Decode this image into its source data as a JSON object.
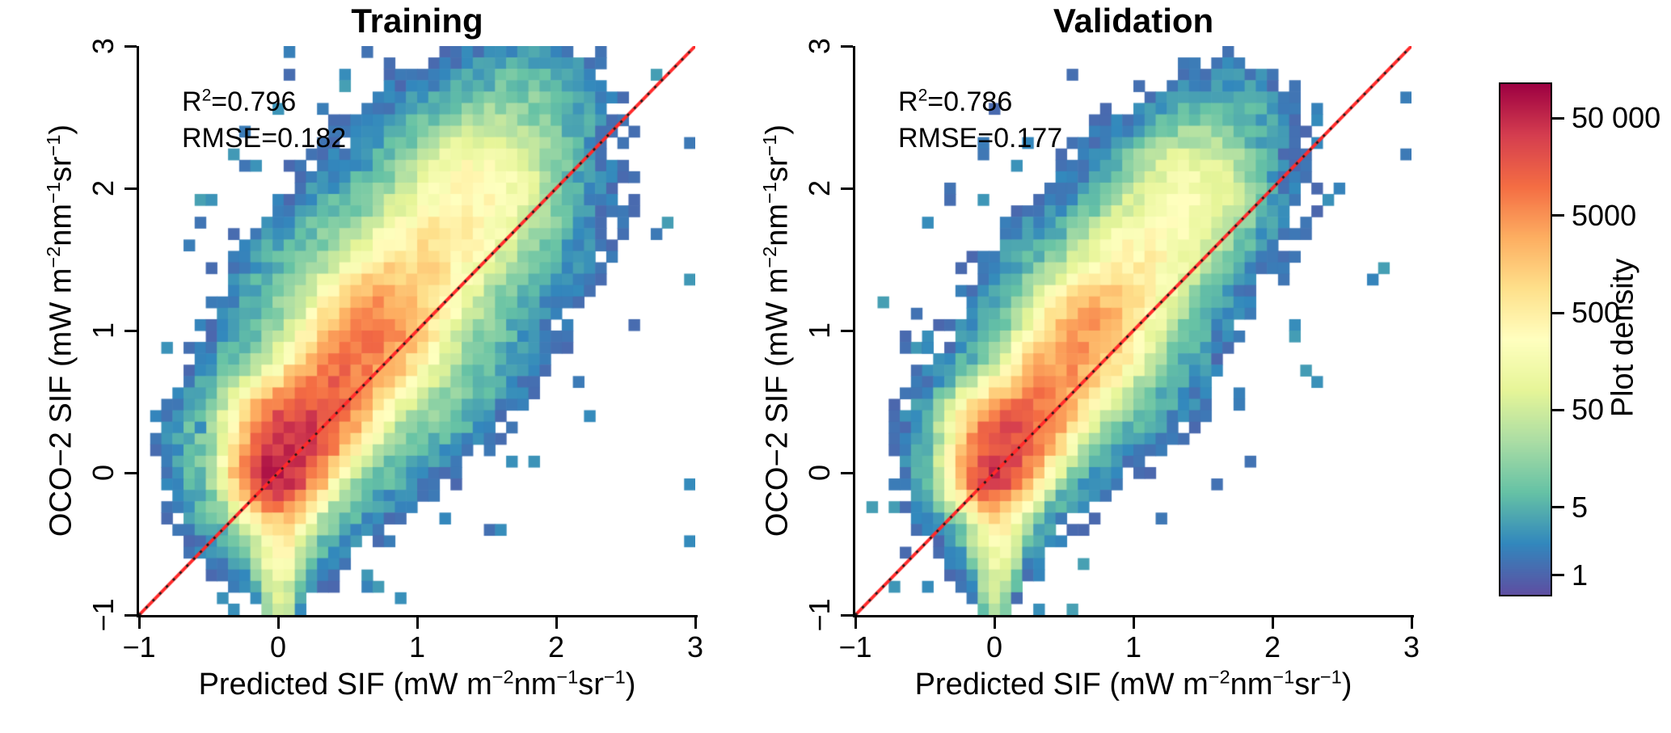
{
  "chart_data": {
    "type": "heatmap",
    "description": "Two 2D-histogram density scatter plots (Training and Validation) of predicted SIF versus OCO-2 observed SIF with a red 1:1 line and a log-scaled Spectral color bar of bin counts.",
    "colormap": [
      "#5e4fa2",
      "#3288bd",
      "#66c2a5",
      "#abdda4",
      "#e6f598",
      "#ffffbf",
      "#fee08b",
      "#fdae61",
      "#f46d43",
      "#d53e4f",
      "#9e0142"
    ],
    "log_color_range": [
      -0.2,
      5.05
    ],
    "identity_line": {
      "color": "#ff2a2a",
      "dot_color": "#1a1a1a"
    },
    "colorbar": {
      "label": "Plot density",
      "tick_labels": [
        "1",
        "5",
        "50",
        "500",
        "5000",
        "50 000"
      ],
      "tick_values": [
        1,
        5,
        50,
        500,
        5000,
        50000
      ]
    },
    "panels": [
      {
        "title": "Training",
        "r2": 0.796,
        "rmse": 0.182,
        "r2_parts": [
          {
            "t": "R"
          },
          {
            "sup": "2"
          },
          {
            "t": "=0.796"
          }
        ],
        "rmse_label": "RMSE=0.182",
        "xlabel_parts": [
          {
            "t": "Predicted SIF (mW m"
          },
          {
            "sup": "−2"
          },
          {
            "t": "nm"
          },
          {
            "sup": "−1"
          },
          {
            "t": "sr"
          },
          {
            "sup": "−1"
          },
          {
            "t": ")"
          }
        ],
        "ylabel_parts": [
          {
            "t": "OCO−2 SIF (mW m"
          },
          {
            "sup": "−2"
          },
          {
            "t": "nm"
          },
          {
            "sup": "−1"
          },
          {
            "t": "sr"
          },
          {
            "sup": "−1"
          },
          {
            "t": ")"
          }
        ],
        "xlim": [
          -1,
          3
        ],
        "ylim": [
          -1,
          3
        ],
        "xticks": [
          "−1",
          "0",
          "1",
          "2",
          "3"
        ],
        "yticks": [
          "−1",
          "0",
          "1",
          "2",
          "3"
        ],
        "model": {
          "seed": 12,
          "bins": 50,
          "noise": 0.5,
          "speckle": 0.06,
          "ridges": [
            {
              "p0": [
                0.0,
                0.02
              ],
              "p1": [
                0.7,
                1.0
              ],
              "logA0": 4.82,
              "logA1": 3.6,
              "sigma0": 0.115,
              "sigma1": 0.165
            },
            {
              "p0": [
                0.7,
                1.0
              ],
              "p1": [
                1.45,
                2.0
              ],
              "logA0": 3.6,
              "logA1": 2.3,
              "sigma0": 0.165,
              "sigma1": 0.2
            },
            {
              "p0": [
                1.45,
                2.0
              ],
              "p1": [
                1.8,
                2.55
              ],
              "logA0": 2.3,
              "logA1": 0.9,
              "sigma0": 0.2,
              "sigma1": 0.24
            },
            {
              "p0": [
                0.01,
                -1.0
              ],
              "p1": [
                0.03,
                0.3
              ],
              "logA0": 1.6,
              "logA1": 4.2,
              "sigma0": 0.05,
              "sigma1": 0.13
            },
            {
              "p0": [
                0.0,
                0.0
              ],
              "p1": [
                0.7,
                1.0
              ],
              "logA0": 1.35,
              "logA1": 1.4,
              "sigma0": 0.33,
              "sigma1": 0.42
            },
            {
              "p0": [
                0.7,
                1.0
              ],
              "p1": [
                1.5,
                2.05
              ],
              "logA0": 1.4,
              "logA1": 0.7,
              "sigma0": 0.42,
              "sigma1": 0.5
            },
            {
              "p0": [
                1.5,
                2.05
              ],
              "p1": [
                1.78,
                2.5
              ],
              "logA0": 0.7,
              "logA1": 0.0,
              "sigma0": 0.5,
              "sigma1": 0.5
            },
            {
              "p0": [
                0.0,
                -1.0
              ],
              "p1": [
                0.02,
                0.2
              ],
              "logA0": 0.4,
              "logA1": 1.6,
              "sigma0": 0.12,
              "sigma1": 0.3
            }
          ],
          "outliers": [
            [
              2.94,
              -0.06
            ],
            [
              2.94,
              -0.46
            ],
            [
              -0.58,
              0.34
            ]
          ]
        }
      },
      {
        "title": "Validation",
        "r2": 0.786,
        "rmse": 0.177,
        "r2_parts": [
          {
            "t": "R"
          },
          {
            "sup": "2"
          },
          {
            "t": "=0.786"
          }
        ],
        "rmse_label": "RMSE=0.177",
        "xlabel_parts": [
          {
            "t": "Predicted SIF (mW m"
          },
          {
            "sup": "−2"
          },
          {
            "t": "nm"
          },
          {
            "sup": "−1"
          },
          {
            "t": "sr"
          },
          {
            "sup": "−1"
          },
          {
            "t": ")"
          }
        ],
        "ylabel_parts": [
          {
            "t": "OCO−2 SIF (mW m"
          },
          {
            "sup": "−2"
          },
          {
            "t": "nm"
          },
          {
            "sup": "−1"
          },
          {
            "t": "sr"
          },
          {
            "sup": "−1"
          },
          {
            "t": ")"
          }
        ],
        "xlim": [
          -1,
          3
        ],
        "ylim": [
          -1,
          3
        ],
        "xticks": [
          "−1",
          "0",
          "1",
          "2",
          "3"
        ],
        "yticks": [
          "−1",
          "0",
          "1",
          "2",
          "3"
        ],
        "model": {
          "seed": 77,
          "bins": 50,
          "noise": 0.5,
          "speckle": 0.055,
          "ridges": [
            {
              "p0": [
                0.0,
                0.02
              ],
              "p1": [
                0.7,
                1.0
              ],
              "logA0": 4.55,
              "logA1": 3.3,
              "sigma0": 0.107,
              "sigma1": 0.153
            },
            {
              "p0": [
                0.7,
                1.0
              ],
              "p1": [
                1.42,
                1.98
              ],
              "logA0": 3.3,
              "logA1": 2.0,
              "sigma0": 0.153,
              "sigma1": 0.186
            },
            {
              "p0": [
                1.42,
                1.98
              ],
              "p1": [
                1.72,
                2.48
              ],
              "logA0": 2.0,
              "logA1": 0.6,
              "sigma0": 0.186,
              "sigma1": 0.223
            },
            {
              "p0": [
                0.01,
                -1.0
              ],
              "p1": [
                0.03,
                0.28
              ],
              "logA0": 1.35,
              "logA1": 3.95,
              "sigma0": 0.047,
              "sigma1": 0.121
            },
            {
              "p0": [
                0.0,
                0.0
              ],
              "p1": [
                0.7,
                1.0
              ],
              "logA0": 1.05,
              "logA1": 1.1,
              "sigma0": 0.307,
              "sigma1": 0.39
            },
            {
              "p0": [
                0.7,
                1.0
              ],
              "p1": [
                1.45,
                2.0
              ],
              "logA0": 1.1,
              "logA1": 0.4,
              "sigma0": 0.39,
              "sigma1": 0.465
            },
            {
              "p0": [
                1.45,
                2.0
              ],
              "p1": [
                1.7,
                2.45
              ],
              "logA0": 0.4,
              "logA1": -0.3,
              "sigma0": 0.465,
              "sigma1": 0.465
            },
            {
              "p0": [
                0.0,
                -1.0
              ],
              "p1": [
                0.02,
                0.2
              ],
              "logA0": 0.2,
              "logA1": 1.35,
              "sigma0": 0.112,
              "sigma1": 0.279
            }
          ],
          "outliers": [
            [
              -0.5,
              0.9
            ],
            [
              2.28,
              2.45
            ]
          ]
        }
      }
    ]
  }
}
